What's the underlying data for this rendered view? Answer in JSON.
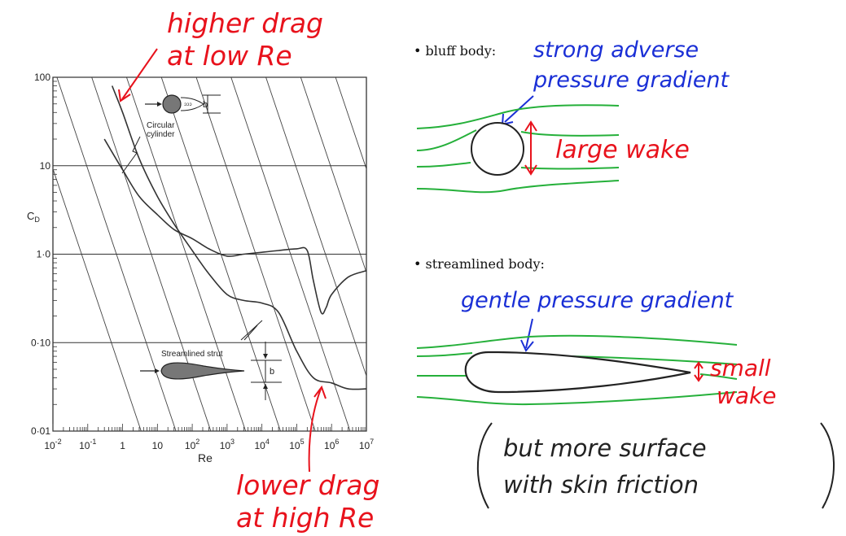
{
  "colors": {
    "annotation_red": "#e8121c",
    "annotation_blue": "#1a2fd6",
    "streamline_green": "#25b03a",
    "ink": "#222222"
  },
  "chart_data": {
    "type": "line",
    "scale": "log-log",
    "xlabel": "Re",
    "ylabel": "C_D",
    "x_ticks": [
      "10^-2",
      "10^-1",
      "1",
      "10",
      "10^2",
      "10^3",
      "10^4",
      "10^5",
      "10^6",
      "10^7"
    ],
    "y_ticks": [
      "100",
      "10",
      "1·0",
      "0·10",
      "0·01"
    ],
    "xlim": [
      0.01,
      10000000
    ],
    "ylim": [
      0.01,
      100
    ],
    "series": [
      {
        "name": "Circular cylinder",
        "x": [
          0.3,
          1,
          3,
          10,
          30,
          100,
          300,
          1000,
          3000,
          10000,
          30000,
          100000,
          200000,
          300000,
          500000,
          700000,
          1000000,
          3000000,
          10000000
        ],
        "y": [
          20,
          9,
          4.5,
          2.8,
          1.9,
          1.5,
          1.15,
          0.95,
          1.0,
          1.05,
          1.1,
          1.15,
          1.1,
          0.5,
          0.22,
          0.25,
          0.35,
          0.55,
          0.65
        ]
      },
      {
        "name": "Streamlined strut",
        "x": [
          0.5,
          1,
          3,
          10,
          30,
          100,
          300,
          1000,
          3000,
          10000,
          30000,
          100000,
          300000,
          1000000,
          3000000,
          10000000
        ],
        "y": [
          80,
          40,
          12,
          4.5,
          2.2,
          1.1,
          0.6,
          0.35,
          0.3,
          0.28,
          0.22,
          0.08,
          0.04,
          0.035,
          0.03,
          0.03
        ]
      }
    ],
    "plot_labels": {
      "cylinder": [
        "Circular",
        "cylinder"
      ],
      "strut": "Streamlined strut",
      "dim": "b"
    }
  },
  "annotations": {
    "top_line1": "higher drag",
    "top_line2": "at low Re",
    "bottom_line1": "lower drag",
    "bottom_line2": "at high Re"
  },
  "bluff": {
    "label": "• bluff body:",
    "note_line1": "strong adverse",
    "note_line2": "pressure gradient",
    "wake": "large wake"
  },
  "streamlined": {
    "label": "• streamlined body:",
    "note": "gentle pressure gradient",
    "wake_line1": "small",
    "wake_line2": "wake",
    "friction_line1": "but more surface",
    "friction_line2": "with skin friction"
  }
}
